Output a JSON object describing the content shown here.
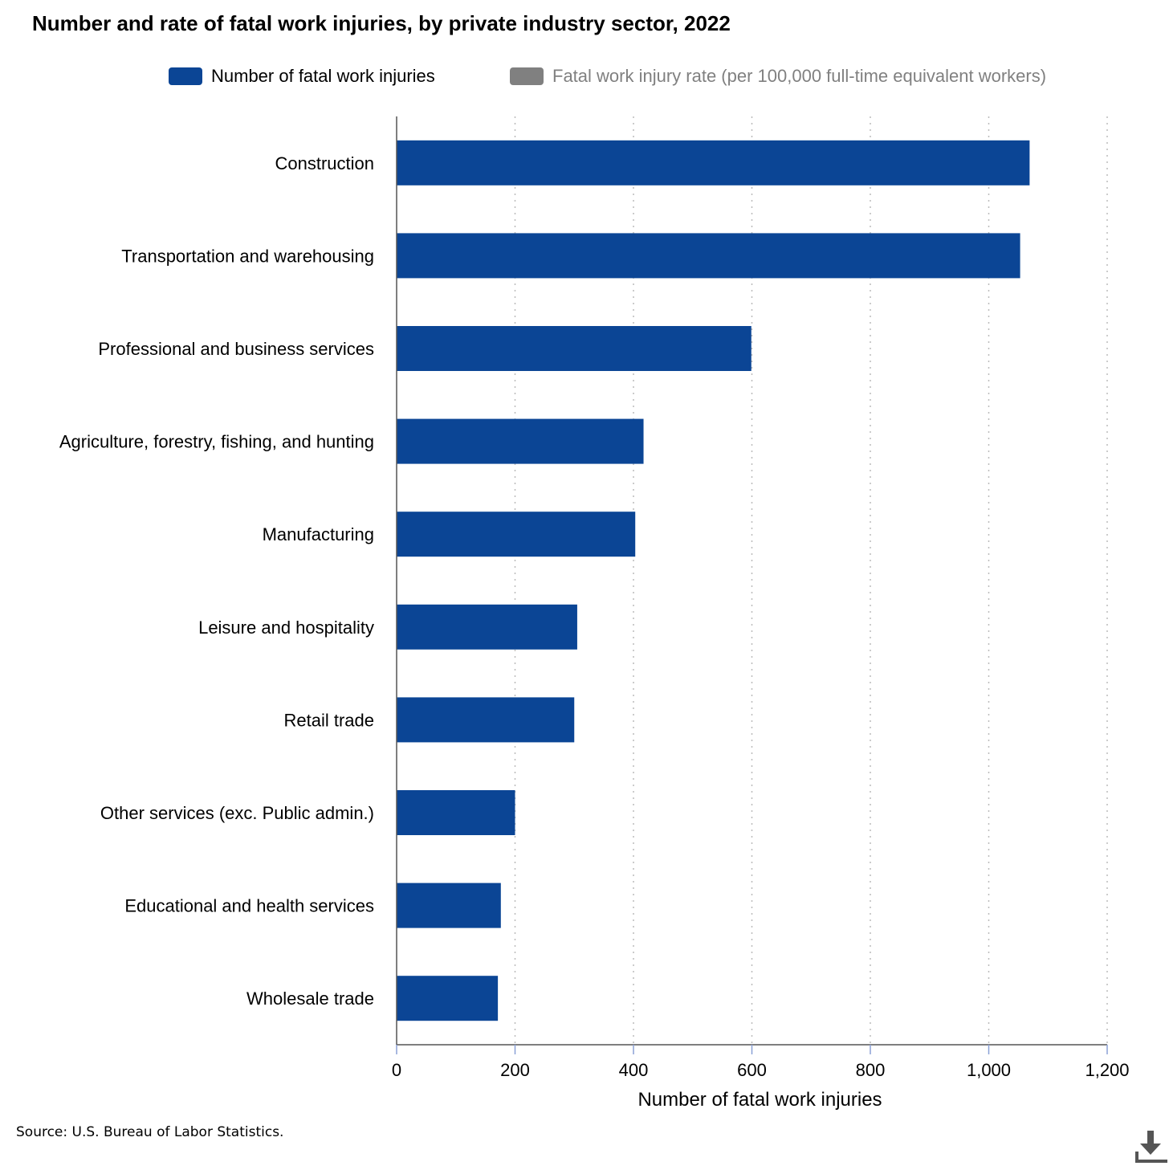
{
  "chart_data": {
    "type": "bar",
    "orientation": "horizontal",
    "title": "Number and rate of fatal work injuries, by private industry sector, 2022",
    "categories": [
      "Construction",
      "Transportation and warehousing",
      "Professional and business services",
      "Agriculture, forestry, fishing, and hunting",
      "Manufacturing",
      "Leisure and hospitality",
      "Retail trade",
      "Other services (exc. Public admin.)",
      "Educational and health services",
      "Wholesale trade"
    ],
    "series": [
      {
        "name": "Number of fatal work injuries",
        "color": "#0b4595",
        "values": [
          1069,
          1053,
          599,
          417,
          403,
          305,
          300,
          200,
          176,
          171
        ]
      }
    ],
    "legend": [
      {
        "label": "Number of fatal work injuries",
        "color": "#0b4595",
        "active": true
      },
      {
        "label": "Fatal work injury rate (per 100,000 full-time equivalent workers)",
        "color": "#808080",
        "active": false
      }
    ],
    "xlabel": "Number of fatal work injuries",
    "xlim": [
      0,
      1200
    ],
    "xticks": [
      0,
      200,
      400,
      600,
      800,
      1000,
      1200
    ],
    "xtick_labels": [
      "0",
      "200",
      "400",
      "600",
      "800",
      "1,000",
      "1,200"
    ],
    "grid": "vertical-dotted",
    "legend_position": "top"
  },
  "source": "Source: U.S. Bureau of Labor Statistics.",
  "download_icon": "download-icon"
}
